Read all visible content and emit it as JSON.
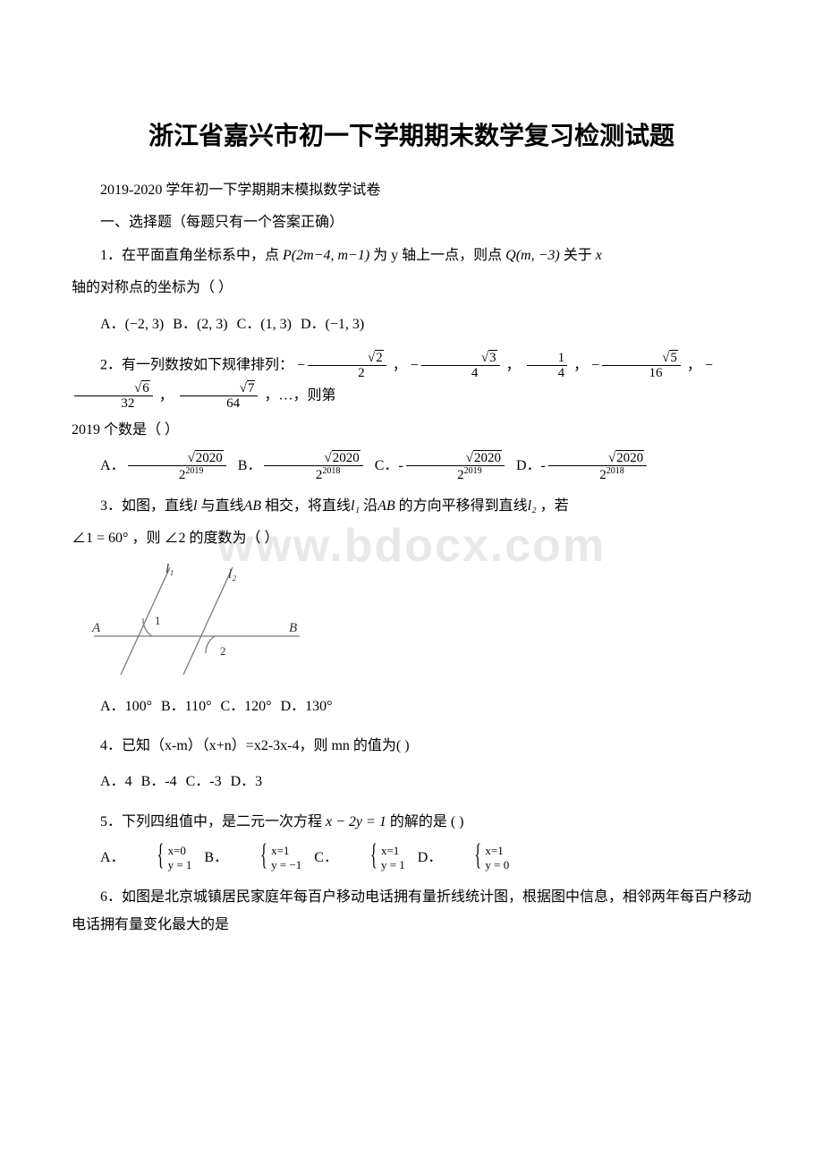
{
  "watermark": "www.bdocx.com",
  "title": "浙江省嘉兴市初一下学期期末数学复习检测试题",
  "intro": {
    "line1": "2019-2020 学年初一下学期期末模拟数学试卷",
    "line2": "一、选择题（每题只有一个答案正确）"
  },
  "q1": {
    "stem_a": "1．在平面直角坐标系中，点",
    "P": "P(2m−4, m−1)",
    "stem_b": "为 y 轴上一点，则点",
    "Q": "Q(m, −3)",
    "stem_c": "关于",
    "x": "x",
    "stem_d": "轴的对称点的坐标为（ ）",
    "A": "(−2, 3)",
    "B": "(2, 3)",
    "C": "(1, 3)",
    "D": "(−1, 3)"
  },
  "q2": {
    "stem_a": "2．有一列数按如下规律排列：",
    "seq": [
      {
        "sign": "−",
        "num": "√2",
        "den": "2"
      },
      {
        "sign": "−",
        "num": "√3",
        "den": "4"
      },
      {
        "sign": "",
        "num": "1",
        "den": "4"
      },
      {
        "sign": "−",
        "num": "√5",
        "den": "16"
      },
      {
        "sign": "−",
        "num": "√6",
        "den": "32"
      },
      {
        "sign": "",
        "num": "√7",
        "den": "64"
      }
    ],
    "stem_b": "，…，则第",
    "stem_c": "2019 个数是（ ）",
    "A": {
      "num": "√2020",
      "den": "2",
      "exp": "2019",
      "sign": ""
    },
    "B": {
      "num": "√2020",
      "den": "2",
      "exp": "2018",
      "sign": ""
    },
    "C": {
      "num": "√2020",
      "den": "2",
      "exp": "2019",
      "sign": "-"
    },
    "D": {
      "num": "√2020",
      "den": "2",
      "exp": "2018",
      "sign": "-"
    }
  },
  "q3": {
    "stem_a": "3．如图，直线",
    "l": "l",
    "stem_b": "与直线",
    "AB": "AB",
    "stem_c": "相交，将直线",
    "l1": "l₁",
    "stem_d": "沿",
    "stem_e": "的方向平移得到直线",
    "l2": "l₂",
    "stem_f": "，若",
    "cond": "∠1 = 60°",
    "stem_g": "，则",
    "ask": "∠2",
    "stem_h": "的度数为（ ）",
    "fig": {
      "l1": "l₁",
      "l2": "l₂",
      "A": "A",
      "B": "B",
      "a1": "1",
      "a2": "2",
      "stroke": "#7a7a7a",
      "text": "#333333"
    },
    "A": "100°",
    "B": "110°",
    "C": "120°",
    "D": "130°"
  },
  "q4": {
    "stem": "4．已知（x-m）（x+n）=x2-3x-4，则 mn 的值为(     )",
    "A": "4",
    "B": "-4",
    "C": "-3",
    "D": "3"
  },
  "q5": {
    "stem_a": "5．下列四组值中，是二元一次方程",
    "eq": "x − 2y = 1",
    "stem_b": "的解的是",
    "paren": "(          )",
    "A": {
      "r1": "x=0",
      "r2": "y = 1"
    },
    "B": {
      "r1": "x=1",
      "r2": "y = −1"
    },
    "C": {
      "r1": "x=1",
      "r2": "y = 1"
    },
    "D": {
      "r1": "x=1",
      "r2": "y = 0"
    }
  },
  "q6": {
    "stem": "6．如图是北京城镇居民家庭年每百户移动电话拥有量折线统计图，根据图中信息，相邻两年每百户移动电话拥有量变化最大的是"
  }
}
